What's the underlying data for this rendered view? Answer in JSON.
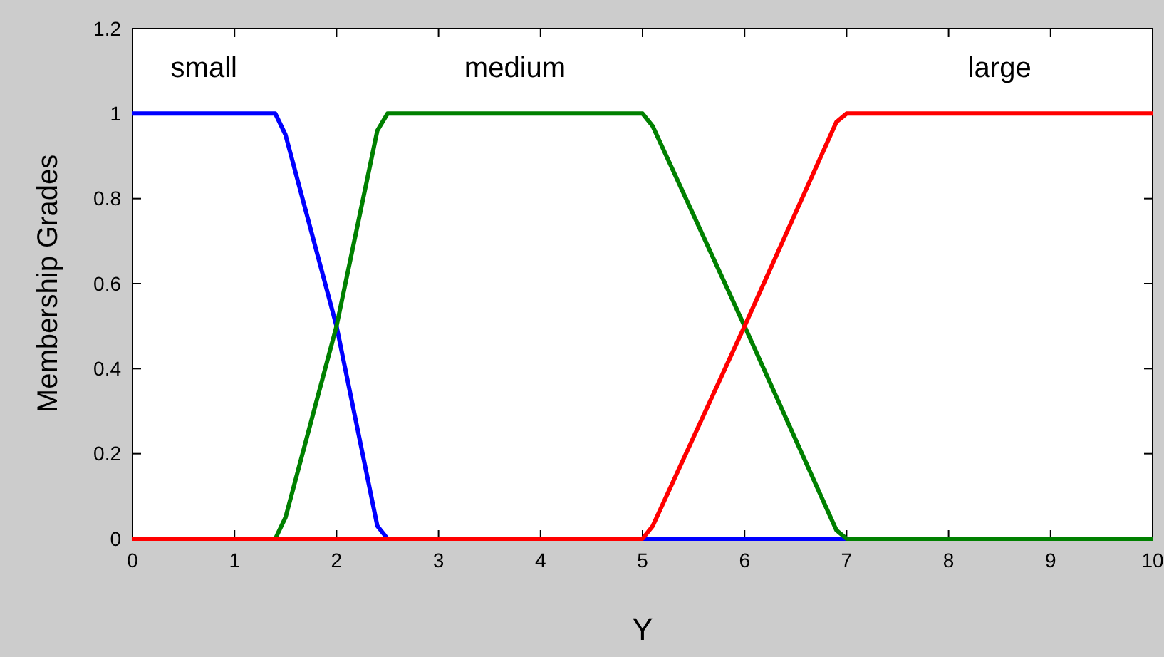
{
  "chart_data": {
    "type": "line",
    "xlabel": "Y",
    "ylabel": "Membership Grades",
    "xlim": [
      0,
      10
    ],
    "ylim": [
      0,
      1.2
    ],
    "xticks": [
      0,
      1,
      2,
      3,
      4,
      5,
      6,
      7,
      8,
      9,
      10
    ],
    "yticks": [
      0,
      0.2,
      0.4,
      0.6,
      0.8,
      1,
      1.2
    ],
    "grid": false,
    "marker": "none",
    "line_style": "solid",
    "series": [
      {
        "name": "small",
        "color": "#0000ff",
        "x": [
          0,
          1.4,
          1.5,
          2,
          2.4,
          2.5,
          10
        ],
        "values": [
          1,
          1,
          0.95,
          0.5,
          0.03,
          0,
          0
        ]
      },
      {
        "name": "medium",
        "color": "#008000",
        "x": [
          0,
          1.4,
          1.5,
          2,
          2.4,
          2.5,
          5,
          5.1,
          6,
          6.9,
          7,
          10
        ],
        "values": [
          0,
          0,
          0.05,
          0.5,
          0.96,
          1,
          1,
          0.97,
          0.5,
          0.02,
          0,
          0
        ]
      },
      {
        "name": "large",
        "color": "#ff0000",
        "x": [
          0,
          5,
          5.1,
          6,
          6.9,
          7,
          10
        ],
        "values": [
          0,
          0,
          0.03,
          0.5,
          0.98,
          1,
          1
        ]
      }
    ]
  }
}
